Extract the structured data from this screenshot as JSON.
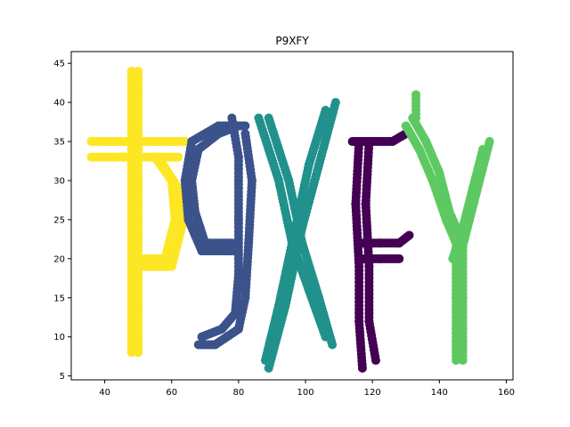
{
  "chart_data": {
    "type": "scatter",
    "title": "P9XFY",
    "xlabel": "",
    "ylabel": "",
    "xlim": [
      30,
      162
    ],
    "ylim": [
      4.5,
      46.5
    ],
    "xticks": [
      40,
      60,
      80,
      100,
      120,
      140,
      160
    ],
    "yticks": [
      5,
      10,
      15,
      20,
      25,
      30,
      35,
      40,
      45
    ],
    "grid": false,
    "series": [
      {
        "color": "#fde725",
        "segments": [
          [
            [
              48,
              44
            ],
            [
              48,
              34
            ],
            [
              48,
              22
            ],
            [
              48,
              8
            ]
          ],
          [
            [
              50,
              44
            ],
            [
              50,
              34
            ],
            [
              50,
              22
            ],
            [
              50,
              8
            ]
          ],
          [
            [
              36,
              35
            ],
            [
              45,
              35
            ],
            [
              55,
              35
            ],
            [
              64,
              35
            ]
          ],
          [
            [
              36,
              33
            ],
            [
              45,
              33
            ],
            [
              55,
              33
            ],
            [
              62,
              33
            ]
          ],
          [
            [
              55,
              33
            ],
            [
              60,
              30
            ],
            [
              61,
              25
            ],
            [
              58,
              20
            ],
            [
              52,
              20
            ]
          ],
          [
            [
              56,
              33
            ],
            [
              62,
              29
            ],
            [
              63,
              24
            ],
            [
              60,
              19
            ],
            [
              52,
              19
            ]
          ]
        ]
      },
      {
        "color": "#3b528b",
        "segments": [
          [
            [
              82,
              37
            ],
            [
              74,
              37
            ],
            [
              66,
              35
            ],
            [
              64,
              30
            ],
            [
              65,
              25
            ],
            [
              69,
              21
            ],
            [
              79,
              21
            ]
          ],
          [
            [
              80,
              37
            ],
            [
              74,
              36
            ],
            [
              68,
              34
            ],
            [
              66,
              30
            ],
            [
              67,
              26
            ],
            [
              70,
              22
            ],
            [
              78,
              22
            ]
          ],
          [
            [
              78,
              38
            ],
            [
              80,
              33
            ],
            [
              80,
              25
            ],
            [
              80,
              18
            ],
            [
              79,
              13
            ],
            [
              75,
              11
            ],
            [
              69,
              10
            ]
          ],
          [
            [
              82,
              36
            ],
            [
              84,
              30
            ],
            [
              83,
              22
            ],
            [
              82,
              15
            ],
            [
              80,
              11
            ],
            [
              73,
              9
            ],
            [
              68,
              9
            ]
          ]
        ]
      },
      {
        "color": "#21918c",
        "segments": [
          [
            [
              86,
              38
            ],
            [
              92,
              30
            ],
            [
              96,
              22
            ],
            [
              101,
              16
            ],
            [
              106,
              10
            ]
          ],
          [
            [
              89,
              38
            ],
            [
              95,
              30
            ],
            [
              99,
              22
            ],
            [
              104,
              15
            ],
            [
              108,
              9
            ]
          ],
          [
            [
              109,
              40
            ],
            [
              104,
              32
            ],
            [
              99,
              24
            ],
            [
              94,
              14
            ],
            [
              89,
              6
            ]
          ],
          [
            [
              106,
              39
            ],
            [
              101,
              32
            ],
            [
              97,
              24
            ],
            [
              92,
              14
            ],
            [
              88,
              7
            ]
          ]
        ]
      },
      {
        "color": "#440154",
        "segments": [
          [
            [
              116,
              35
            ],
            [
              115,
              27
            ],
            [
              116,
              19
            ],
            [
              116,
              12
            ],
            [
              117,
              6
            ]
          ],
          [
            [
              119,
              35
            ],
            [
              118,
              27
            ],
            [
              119,
              19
            ],
            [
              119,
              12
            ],
            [
              121,
              7
            ]
          ],
          [
            [
              114,
              35
            ],
            [
              120,
              35
            ],
            [
              126,
              35
            ],
            [
              130,
              36
            ]
          ],
          [
            [
              117,
              22
            ],
            [
              122,
              22
            ],
            [
              128,
              22
            ],
            [
              131,
              23
            ]
          ],
          [
            [
              117,
              20
            ],
            [
              122,
              20
            ],
            [
              128,
              20
            ]
          ]
        ]
      },
      {
        "color": "#5ec962",
        "segments": [
          [
            [
              130,
              37
            ],
            [
              134,
              34
            ],
            [
              138,
              30
            ],
            [
              142,
              25
            ],
            [
              145,
              22
            ]
          ],
          [
            [
              132,
              38
            ],
            [
              136,
              35
            ],
            [
              140,
              31
            ],
            [
              143,
              26
            ],
            [
              146,
              23
            ]
          ],
          [
            [
              155,
              35
            ],
            [
              152,
              30
            ],
            [
              149,
              25
            ],
            [
              146,
              20
            ]
          ],
          [
            [
              153,
              34
            ],
            [
              150,
              29
            ],
            [
              147,
              24
            ],
            [
              144,
              20
            ]
          ],
          [
            [
              145,
              22
            ],
            [
              145,
              15
            ],
            [
              145,
              7
            ]
          ],
          [
            [
              147,
              22
            ],
            [
              147,
              15
            ],
            [
              147,
              7
            ]
          ],
          [
            [
              133,
              41
            ],
            [
              133,
              38
            ]
          ]
        ]
      }
    ]
  }
}
